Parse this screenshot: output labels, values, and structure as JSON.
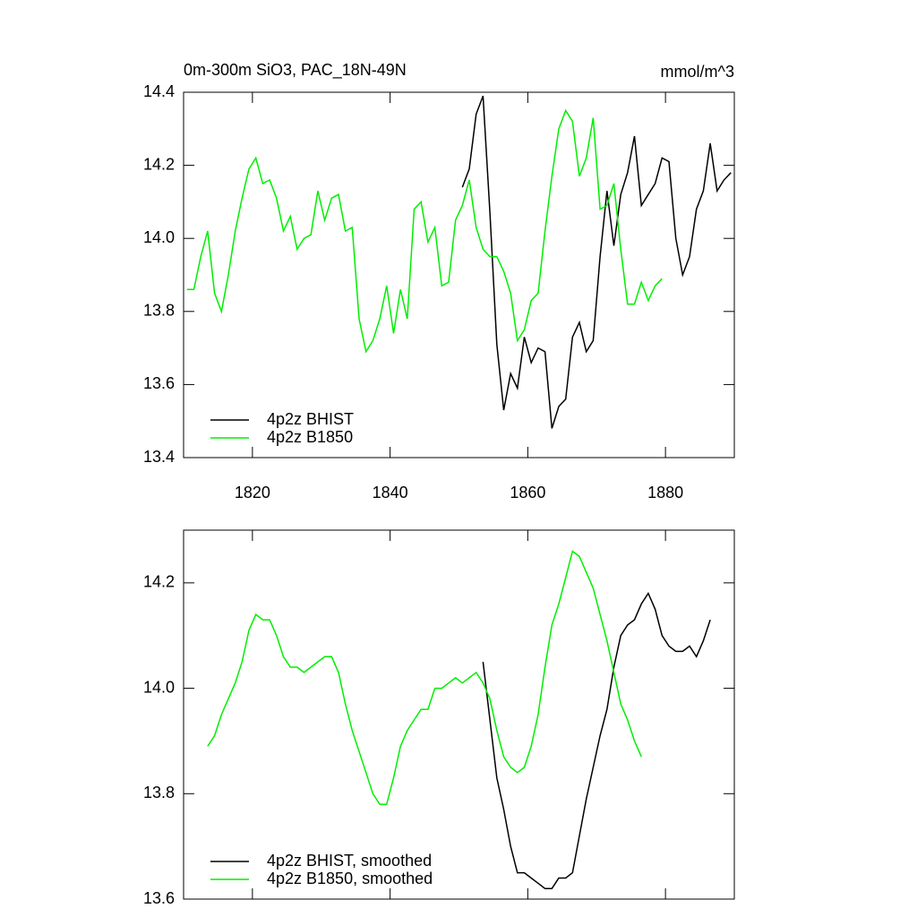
{
  "chart_data": [
    {
      "type": "line",
      "title": "0m-300m SiO3, PAC_18N-49N",
      "units": "mmol/m^3",
      "xlim": [
        1810,
        1890
      ],
      "xticks": [
        1820,
        1840,
        1860,
        1880
      ],
      "show_xtick_labels": true,
      "ylim": [
        13.4,
        14.4
      ],
      "yticks": [
        13.4,
        13.6,
        13.8,
        {
          "value": 14,
          "label": "14.0"
        },
        14.2,
        14.4
      ],
      "legend": "lower left",
      "series": [
        {
          "name": "4p2z BHIST",
          "color": "#000000",
          "x": [
            1850.5,
            1851.5,
            1852.5,
            1853.5,
            1854.5,
            1855.5,
            1856.5,
            1857.5,
            1858.5,
            1859.5,
            1860.5,
            1861.5,
            1862.5,
            1863.5,
            1864.5,
            1865.5,
            1866.5,
            1867.5,
            1868.5,
            1869.5,
            1870.5,
            1871.5,
            1872.5,
            1873.5,
            1874.5,
            1875.5,
            1876.5,
            1877.5,
            1878.5,
            1879.5,
            1880.5,
            1881.5,
            1882.5,
            1883.5,
            1884.5,
            1885.5,
            1886.5,
            1887.5,
            1888.5,
            1889.5
          ],
          "values": [
            14.14,
            14.19,
            14.34,
            14.39,
            14.07,
            13.71,
            13.53,
            13.63,
            13.59,
            13.73,
            13.66,
            13.7,
            13.69,
            13.48,
            13.54,
            13.56,
            13.73,
            13.77,
            13.69,
            13.72,
            13.95,
            14.13,
            13.98,
            14.12,
            14.18,
            14.28,
            14.09,
            14.12,
            14.15,
            14.22,
            14.21,
            14.0,
            13.9,
            13.95,
            14.08,
            14.13,
            14.26,
            14.13,
            14.16,
            14.18
          ]
        },
        {
          "name": "4p2z B1850",
          "color": "#00ee00",
          "x": [
            1810.5,
            1811.5,
            1812.5,
            1813.5,
            1814.5,
            1815.5,
            1816.5,
            1817.5,
            1818.5,
            1819.5,
            1820.5,
            1821.5,
            1822.5,
            1823.5,
            1824.5,
            1825.5,
            1826.5,
            1827.5,
            1828.5,
            1829.5,
            1830.5,
            1831.5,
            1832.5,
            1833.5,
            1834.5,
            1835.5,
            1836.5,
            1837.5,
            1838.5,
            1839.5,
            1840.5,
            1841.5,
            1842.5,
            1843.5,
            1844.5,
            1845.5,
            1846.5,
            1847.5,
            1848.5,
            1849.5,
            1850.5,
            1851.5,
            1852.5,
            1853.5,
            1854.5,
            1855.5,
            1856.5,
            1857.5,
            1858.5,
            1859.5,
            1860.5,
            1861.5,
            1862.5,
            1863.5,
            1864.5,
            1865.5,
            1866.5,
            1867.5,
            1868.5,
            1869.5,
            1870.5,
            1871.5,
            1872.5,
            1873.5,
            1874.5,
            1875.5,
            1876.5,
            1877.5,
            1878.5,
            1879.5
          ],
          "values": [
            13.86,
            13.86,
            13.95,
            14.02,
            13.85,
            13.8,
            13.9,
            14.02,
            14.11,
            14.19,
            14.22,
            14.15,
            14.16,
            14.11,
            14.02,
            14.06,
            13.97,
            14.0,
            14.01,
            14.13,
            14.05,
            14.11,
            14.12,
            14.02,
            14.03,
            13.78,
            13.69,
            13.72,
            13.78,
            13.87,
            13.74,
            13.86,
            13.78,
            14.08,
            14.1,
            13.99,
            14.03,
            13.87,
            13.88,
            14.05,
            14.09,
            14.16,
            14.03,
            13.97,
            13.95,
            13.95,
            13.91,
            13.85,
            13.72,
            13.75,
            13.83,
            13.85,
            14.02,
            14.17,
            14.3,
            14.35,
            14.32,
            14.17,
            14.22,
            14.33,
            14.08,
            14.09,
            14.15,
            13.97,
            13.82,
            13.82,
            13.88,
            13.83,
            13.87,
            13.89
          ]
        }
      ]
    },
    {
      "type": "line",
      "xlim": [
        1810,
        1890
      ],
      "xticks": [
        1820,
        1840,
        1860,
        1880
      ],
      "show_xtick_labels": false,
      "ylim": [
        13.6,
        14.3
      ],
      "yticks": [
        13.6,
        13.8,
        {
          "value": 14,
          "label": "14.0"
        },
        14.2
      ],
      "legend": "lower left",
      "series": [
        {
          "name": "4p2z BHIST, smoothed",
          "color": "#000000",
          "x": [
            1853.5,
            1854.5,
            1855.5,
            1856.5,
            1857.5,
            1858.5,
            1859.5,
            1860.5,
            1861.5,
            1862.5,
            1863.5,
            1864.5,
            1865.5,
            1866.5,
            1867.5,
            1868.5,
            1869.5,
            1870.5,
            1871.5,
            1872.5,
            1873.5,
            1874.5,
            1875.5,
            1876.5,
            1877.5,
            1878.5,
            1879.5,
            1880.5,
            1881.5,
            1882.5,
            1883.5,
            1884.5,
            1885.5,
            1886.5
          ],
          "values": [
            14.05,
            13.94,
            13.83,
            13.77,
            13.7,
            13.65,
            13.65,
            13.64,
            13.63,
            13.62,
            13.62,
            13.64,
            13.64,
            13.65,
            13.72,
            13.79,
            13.85,
            13.91,
            13.96,
            14.04,
            14.1,
            14.12,
            14.13,
            14.16,
            14.18,
            14.15,
            14.1,
            14.08,
            14.07,
            14.07,
            14.08,
            14.06,
            14.09,
            14.13
          ]
        },
        {
          "name": "4p2z B1850, smoothed",
          "color": "#00ee00",
          "x": [
            1813.5,
            1814.5,
            1815.5,
            1816.5,
            1817.5,
            1818.5,
            1819.5,
            1820.5,
            1821.5,
            1822.5,
            1823.5,
            1824.5,
            1825.5,
            1826.5,
            1827.5,
            1828.5,
            1829.5,
            1830.5,
            1831.5,
            1832.5,
            1833.5,
            1834.5,
            1835.5,
            1836.5,
            1837.5,
            1838.5,
            1839.5,
            1840.5,
            1841.5,
            1842.5,
            1843.5,
            1844.5,
            1845.5,
            1846.5,
            1847.5,
            1848.5,
            1849.5,
            1850.5,
            1851.5,
            1852.5,
            1853.5,
            1854.5,
            1855.5,
            1856.5,
            1857.5,
            1858.5,
            1859.5,
            1860.5,
            1861.5,
            1862.5,
            1863.5,
            1864.5,
            1865.5,
            1866.5,
            1867.5,
            1868.5,
            1869.5,
            1870.5,
            1871.5,
            1872.5,
            1873.5,
            1874.5,
            1875.5,
            1876.5
          ],
          "values": [
            13.89,
            13.91,
            13.95,
            13.98,
            14.01,
            14.05,
            14.11,
            14.14,
            14.13,
            14.13,
            14.1,
            14.06,
            14.04,
            14.04,
            14.03,
            14.04,
            14.05,
            14.06,
            14.06,
            14.03,
            13.97,
            13.92,
            13.88,
            13.84,
            13.8,
            13.78,
            13.78,
            13.83,
            13.89,
            13.92,
            13.94,
            13.96,
            13.96,
            14.0,
            14.0,
            14.01,
            14.02,
            14.01,
            14.02,
            14.03,
            14.01,
            13.98,
            13.92,
            13.87,
            13.85,
            13.84,
            13.85,
            13.89,
            13.95,
            14.04,
            14.12,
            14.16,
            14.21,
            14.26,
            14.25,
            14.22,
            14.19,
            14.14,
            14.09,
            14.03,
            13.97,
            13.94,
            13.9,
            13.87
          ]
        }
      ]
    }
  ]
}
